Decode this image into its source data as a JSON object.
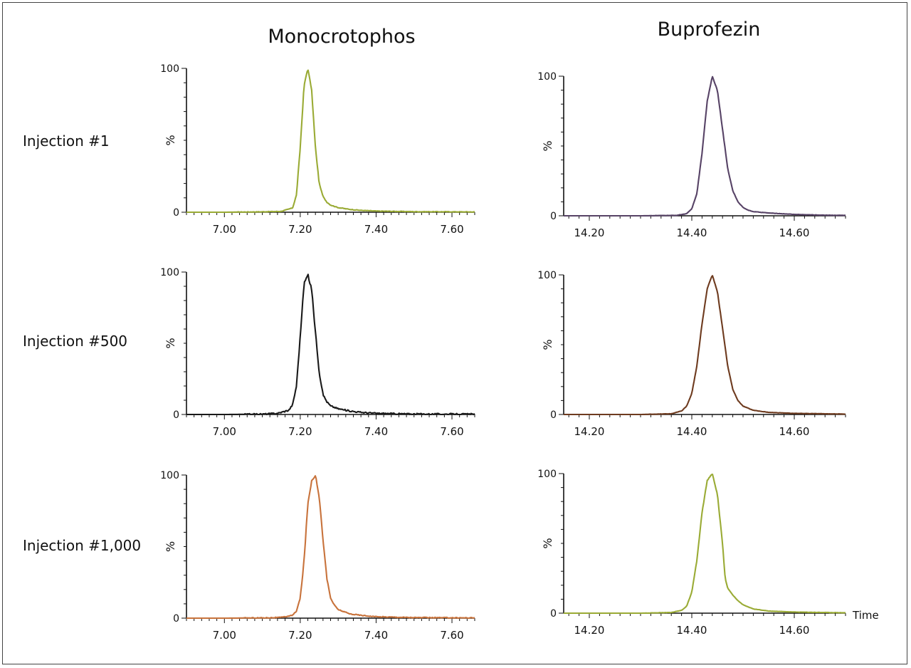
{
  "column_titles": [
    "Monocrotophos",
    "Buprofezin"
  ],
  "row_labels": [
    "Injection #1",
    "Injection #500",
    "Injection #1,000"
  ],
  "time_label": "Time",
  "chart_data": [
    {
      "type": "line",
      "compound": "Monocrotophos",
      "injection": "Injection #1",
      "ylabel": "%",
      "xlim": [
        6.9,
        7.66
      ],
      "ylim": [
        0,
        100
      ],
      "xticks": [
        7.0,
        7.2,
        7.4,
        7.6
      ],
      "xtick_labels": [
        "7.00",
        "7.20",
        "7.40",
        "7.60"
      ],
      "yticks": [
        0,
        100
      ],
      "ytick_labels": [
        "0",
        "100"
      ],
      "color": "#9aab35",
      "noise": 0.4,
      "series": [
        {
          "x": [
            6.9,
            7.0,
            7.1,
            7.15,
            7.18,
            7.19,
            7.2,
            7.21,
            7.22,
            7.23,
            7.24,
            7.25,
            7.26,
            7.27,
            7.28,
            7.3,
            7.33,
            7.36,
            7.4,
            7.5,
            7.6,
            7.66
          ],
          "y": [
            0,
            0,
            0.3,
            0.6,
            3,
            12,
            45,
            88,
            100,
            85,
            45,
            20,
            11,
            7,
            5,
            3.2,
            2,
            1.3,
            0.8,
            0.4,
            0.3,
            0.2
          ]
        }
      ]
    },
    {
      "type": "line",
      "compound": "Buprofezin",
      "injection": "Injection #1",
      "ylabel": "%",
      "xlim": [
        14.15,
        14.7
      ],
      "ylim": [
        0,
        100
      ],
      "xticks": [
        14.2,
        14.4,
        14.6
      ],
      "xtick_labels": [
        "14.20",
        "14.40",
        "14.60"
      ],
      "yticks": [
        0,
        100
      ],
      "ytick_labels": [
        "0",
        "100"
      ],
      "color": "#574366",
      "noise": 0.2,
      "series": [
        {
          "x": [
            14.15,
            14.3,
            14.37,
            14.39,
            14.4,
            14.41,
            14.42,
            14.43,
            14.44,
            14.45,
            14.46,
            14.47,
            14.48,
            14.49,
            14.5,
            14.51,
            14.52,
            14.55,
            14.6,
            14.65,
            14.7
          ],
          "y": [
            0,
            0,
            0.3,
            1.5,
            5,
            16,
            45,
            82,
            100,
            90,
            62,
            34,
            18,
            10,
            6,
            4,
            3,
            2,
            1,
            0.5,
            0.3
          ]
        }
      ]
    },
    {
      "type": "line",
      "compound": "Monocrotophos",
      "injection": "Injection #500",
      "ylabel": "%",
      "xlim": [
        6.9,
        7.66
      ],
      "ylim": [
        0,
        100
      ],
      "xticks": [
        7.0,
        7.2,
        7.4,
        7.6
      ],
      "xtick_labels": [
        "7.00",
        "7.20",
        "7.40",
        "7.60"
      ],
      "yticks": [
        0,
        100
      ],
      "ytick_labels": [
        "0",
        "100"
      ],
      "color": "#1a1a1a",
      "noise": 1.0,
      "series": [
        {
          "x": [
            6.9,
            7.0,
            7.1,
            7.14,
            7.17,
            7.18,
            7.19,
            7.2,
            7.21,
            7.22,
            7.23,
            7.24,
            7.25,
            7.26,
            7.27,
            7.28,
            7.3,
            7.33,
            7.36,
            7.4,
            7.5,
            7.66
          ],
          "y": [
            0,
            0,
            0.2,
            0.8,
            3,
            7,
            20,
            55,
            92,
            98,
            88,
            58,
            30,
            14,
            9,
            6,
            4,
            2.5,
            1.5,
            0.8,
            0.3,
            0.2
          ]
        }
      ]
    },
    {
      "type": "line",
      "compound": "Buprofezin",
      "injection": "Injection #500",
      "ylabel": "%",
      "xlim": [
        14.15,
        14.7
      ],
      "ylim": [
        0,
        100
      ],
      "xticks": [
        14.2,
        14.4,
        14.6
      ],
      "xtick_labels": [
        "14.20",
        "14.40",
        "14.60"
      ],
      "yticks": [
        0,
        100
      ],
      "ytick_labels": [
        "0",
        "100"
      ],
      "color": "#6e3b1f",
      "noise": 0.2,
      "series": [
        {
          "x": [
            14.15,
            14.3,
            14.36,
            14.38,
            14.39,
            14.4,
            14.41,
            14.42,
            14.43,
            14.44,
            14.45,
            14.46,
            14.47,
            14.48,
            14.49,
            14.5,
            14.52,
            14.55,
            14.6,
            14.7
          ],
          "y": [
            0,
            0,
            0.5,
            2.5,
            6,
            15,
            35,
            65,
            90,
            100,
            88,
            62,
            35,
            18,
            10,
            6,
            3,
            1.5,
            0.8,
            0.3
          ]
        }
      ]
    },
    {
      "type": "line",
      "compound": "Monocrotophos",
      "injection": "Injection #1,000",
      "ylabel": "%",
      "xlim": [
        6.9,
        7.66
      ],
      "ylim": [
        0,
        100
      ],
      "xticks": [
        7.0,
        7.2,
        7.4,
        7.6
      ],
      "xtick_labels": [
        "7.00",
        "7.20",
        "7.40",
        "7.60"
      ],
      "yticks": [
        0,
        100
      ],
      "ytick_labels": [
        "0",
        "100"
      ],
      "color": "#c8733c",
      "noise": 0.6,
      "series": [
        {
          "x": [
            6.9,
            7.0,
            7.1,
            7.15,
            7.18,
            7.19,
            7.2,
            7.21,
            7.22,
            7.23,
            7.24,
            7.25,
            7.26,
            7.27,
            7.28,
            7.29,
            7.3,
            7.33,
            7.36,
            7.4,
            7.5,
            7.66
          ],
          "y": [
            0,
            0,
            0.2,
            0.5,
            2,
            5,
            14,
            40,
            80,
            96,
            100,
            85,
            55,
            28,
            14,
            9,
            6,
            3,
            2,
            1,
            0.4,
            0.2
          ]
        }
      ]
    },
    {
      "type": "line",
      "compound": "Buprofezin",
      "injection": "Injection #1,000",
      "ylabel": "%",
      "xlim": [
        14.15,
        14.7
      ],
      "ylim": [
        0,
        100
      ],
      "xticks": [
        14.2,
        14.4,
        14.6
      ],
      "xtick_labels": [
        "14.20",
        "14.40",
        "14.60"
      ],
      "yticks": [
        0,
        100
      ],
      "ytick_labels": [
        "0",
        "100"
      ],
      "color": "#9aab35",
      "noise": 0.2,
      "series": [
        {
          "x": [
            14.15,
            14.3,
            14.36,
            14.38,
            14.39,
            14.4,
            14.41,
            14.42,
            14.43,
            14.44,
            14.45,
            14.46,
            14.465,
            14.47,
            14.48,
            14.49,
            14.5,
            14.52,
            14.55,
            14.6,
            14.7
          ],
          "y": [
            0,
            0,
            0.5,
            2,
            5,
            15,
            38,
            72,
            95,
            100,
            85,
            50,
            25,
            18,
            13,
            9,
            6,
            3,
            1.5,
            0.8,
            0.3
          ]
        }
      ]
    }
  ]
}
